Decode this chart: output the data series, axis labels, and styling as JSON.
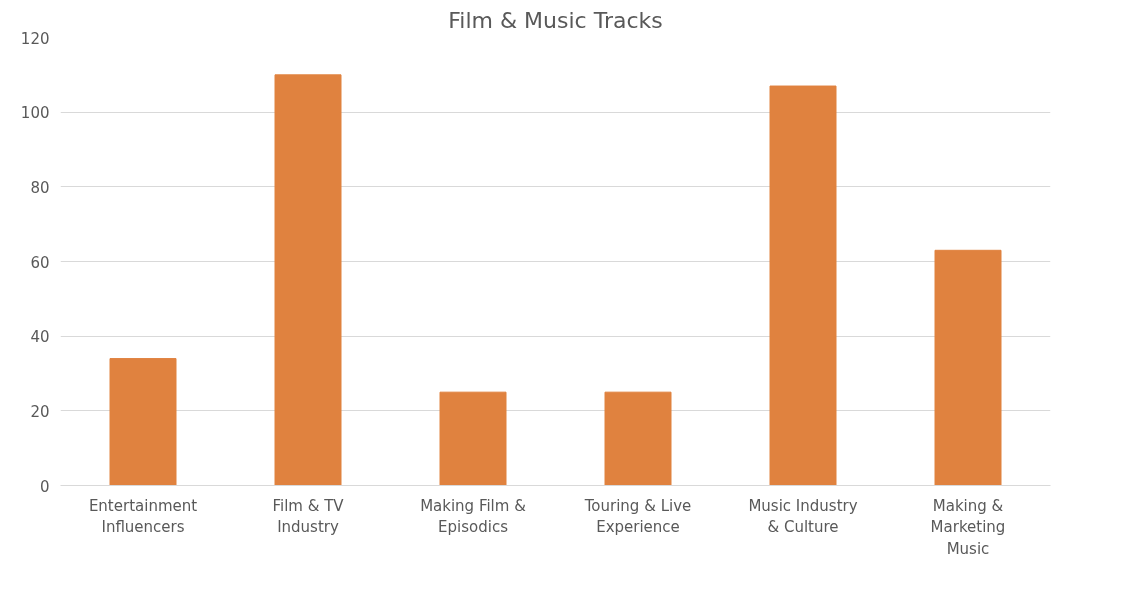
{
  "chart_data": {
    "type": "bar",
    "title": "Film & Music Tracks",
    "categories": [
      "Entertainment Influencers",
      "Film & TV Industry",
      "Making Film & Episodics",
      "Touring & Live Experience",
      "Music Industry & Culture",
      "Making & Marketing Music"
    ],
    "values": [
      34,
      110,
      25,
      25,
      107,
      63
    ],
    "color": "#e0823f",
    "ylim": [
      0,
      120
    ],
    "yticks": [
      0,
      20,
      40,
      60,
      80,
      100,
      120
    ],
    "grid": "y"
  }
}
